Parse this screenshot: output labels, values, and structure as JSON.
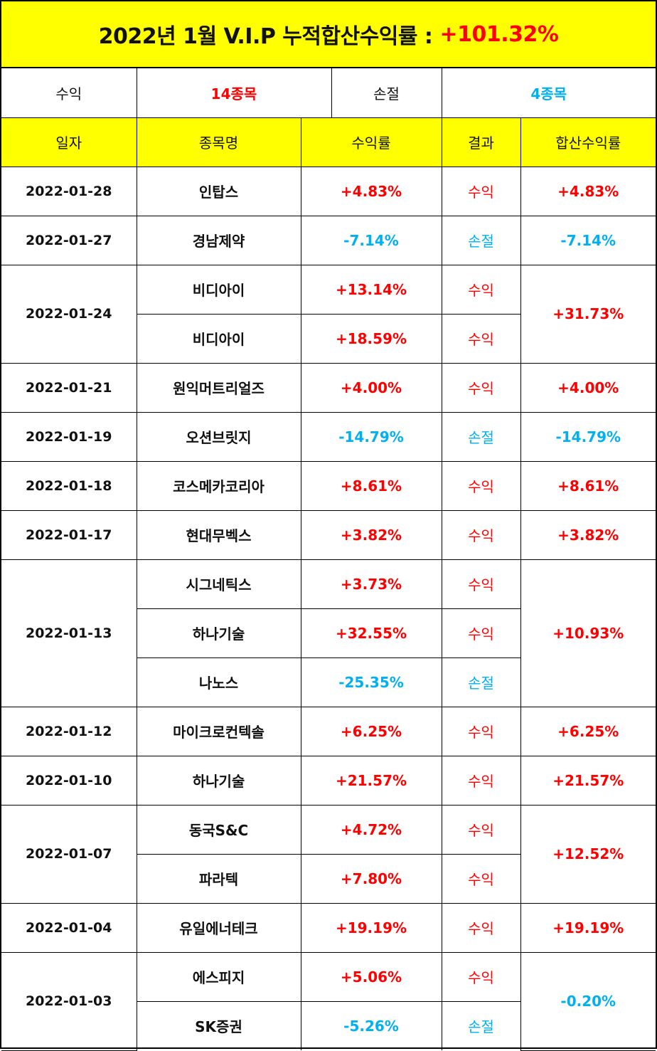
{
  "title": {
    "prefix": "2022년 1월 V.I.P 누적합산수익률 :",
    "total": "+101.32%"
  },
  "summary": {
    "profit_label": "수익",
    "profit_count": "14종목",
    "loss_label": "손절",
    "loss_count": "4종목"
  },
  "headers": {
    "date": "일자",
    "name": "종목명",
    "rate": "수익률",
    "result": "결과",
    "sum": "합산수익률"
  },
  "colors": {
    "header_bg": "#ffff00",
    "profit": "#ff0000",
    "loss": "#00b0f0"
  },
  "groups": [
    {
      "date": "2022-01-28",
      "sum": "+4.83%",
      "sum_color": "red",
      "items": [
        {
          "name": "인탑스",
          "rate": "+4.83%",
          "result": "수익",
          "color": "red"
        }
      ]
    },
    {
      "date": "2022-01-27",
      "sum": "-7.14%",
      "sum_color": "blue",
      "items": [
        {
          "name": "경남제약",
          "rate": "-7.14%",
          "result": "손절",
          "color": "blue"
        }
      ]
    },
    {
      "date": "2022-01-24",
      "sum": "+31.73%",
      "sum_color": "red",
      "items": [
        {
          "name": "비디아이",
          "rate": "+13.14%",
          "result": "수익",
          "color": "red"
        },
        {
          "name": "비디아이",
          "rate": "+18.59%",
          "result": "수익",
          "color": "red"
        }
      ]
    },
    {
      "date": "2022-01-21",
      "sum": "+4.00%",
      "sum_color": "red",
      "items": [
        {
          "name": "원익머트리얼즈",
          "rate": "+4.00%",
          "result": "수익",
          "color": "red"
        }
      ]
    },
    {
      "date": "2022-01-19",
      "sum": "-14.79%",
      "sum_color": "blue",
      "items": [
        {
          "name": "오션브릿지",
          "rate": "-14.79%",
          "result": "손절",
          "color": "blue"
        }
      ]
    },
    {
      "date": "2022-01-18",
      "sum": "+8.61%",
      "sum_color": "red",
      "items": [
        {
          "name": "코스메카코리아",
          "rate": "+8.61%",
          "result": "수익",
          "color": "red"
        }
      ]
    },
    {
      "date": "2022-01-17",
      "sum": "+3.82%",
      "sum_color": "red",
      "items": [
        {
          "name": "현대무벡스",
          "rate": "+3.82%",
          "result": "수익",
          "color": "red"
        }
      ]
    },
    {
      "date": "2022-01-13",
      "sum": "+10.93%",
      "sum_color": "red",
      "items": [
        {
          "name": "시그네틱스",
          "rate": "+3.73%",
          "result": "수익",
          "color": "red"
        },
        {
          "name": "하나기술",
          "rate": "+32.55%",
          "result": "수익",
          "color": "red"
        },
        {
          "name": "나노스",
          "rate": "-25.35%",
          "result": "손절",
          "color": "blue"
        }
      ]
    },
    {
      "date": "2022-01-12",
      "sum": "+6.25%",
      "sum_color": "red",
      "items": [
        {
          "name": "마이크로컨텍솔",
          "rate": "+6.25%",
          "result": "수익",
          "color": "red"
        }
      ]
    },
    {
      "date": "2022-01-10",
      "sum": "+21.57%",
      "sum_color": "red",
      "items": [
        {
          "name": "하나기술",
          "rate": "+21.57%",
          "result": "수익",
          "color": "red"
        }
      ]
    },
    {
      "date": "2022-01-07",
      "sum": "+12.52%",
      "sum_color": "red",
      "items": [
        {
          "name": "동국S&C",
          "rate": "+4.72%",
          "result": "수익",
          "color": "red"
        },
        {
          "name": "파라텍",
          "rate": "+7.80%",
          "result": "수익",
          "color": "red"
        }
      ]
    },
    {
      "date": "2022-01-04",
      "sum": "+19.19%",
      "sum_color": "red",
      "items": [
        {
          "name": "유일에너테크",
          "rate": "+19.19%",
          "result": "수익",
          "color": "red"
        }
      ]
    },
    {
      "date": "2022-01-03",
      "sum": "-0.20%",
      "sum_color": "blue",
      "items": [
        {
          "name": "에스피지",
          "rate": "+5.06%",
          "result": "수익",
          "color": "red"
        },
        {
          "name": "SK증권",
          "rate": "-5.26%",
          "result": "손절",
          "color": "blue"
        }
      ]
    }
  ]
}
